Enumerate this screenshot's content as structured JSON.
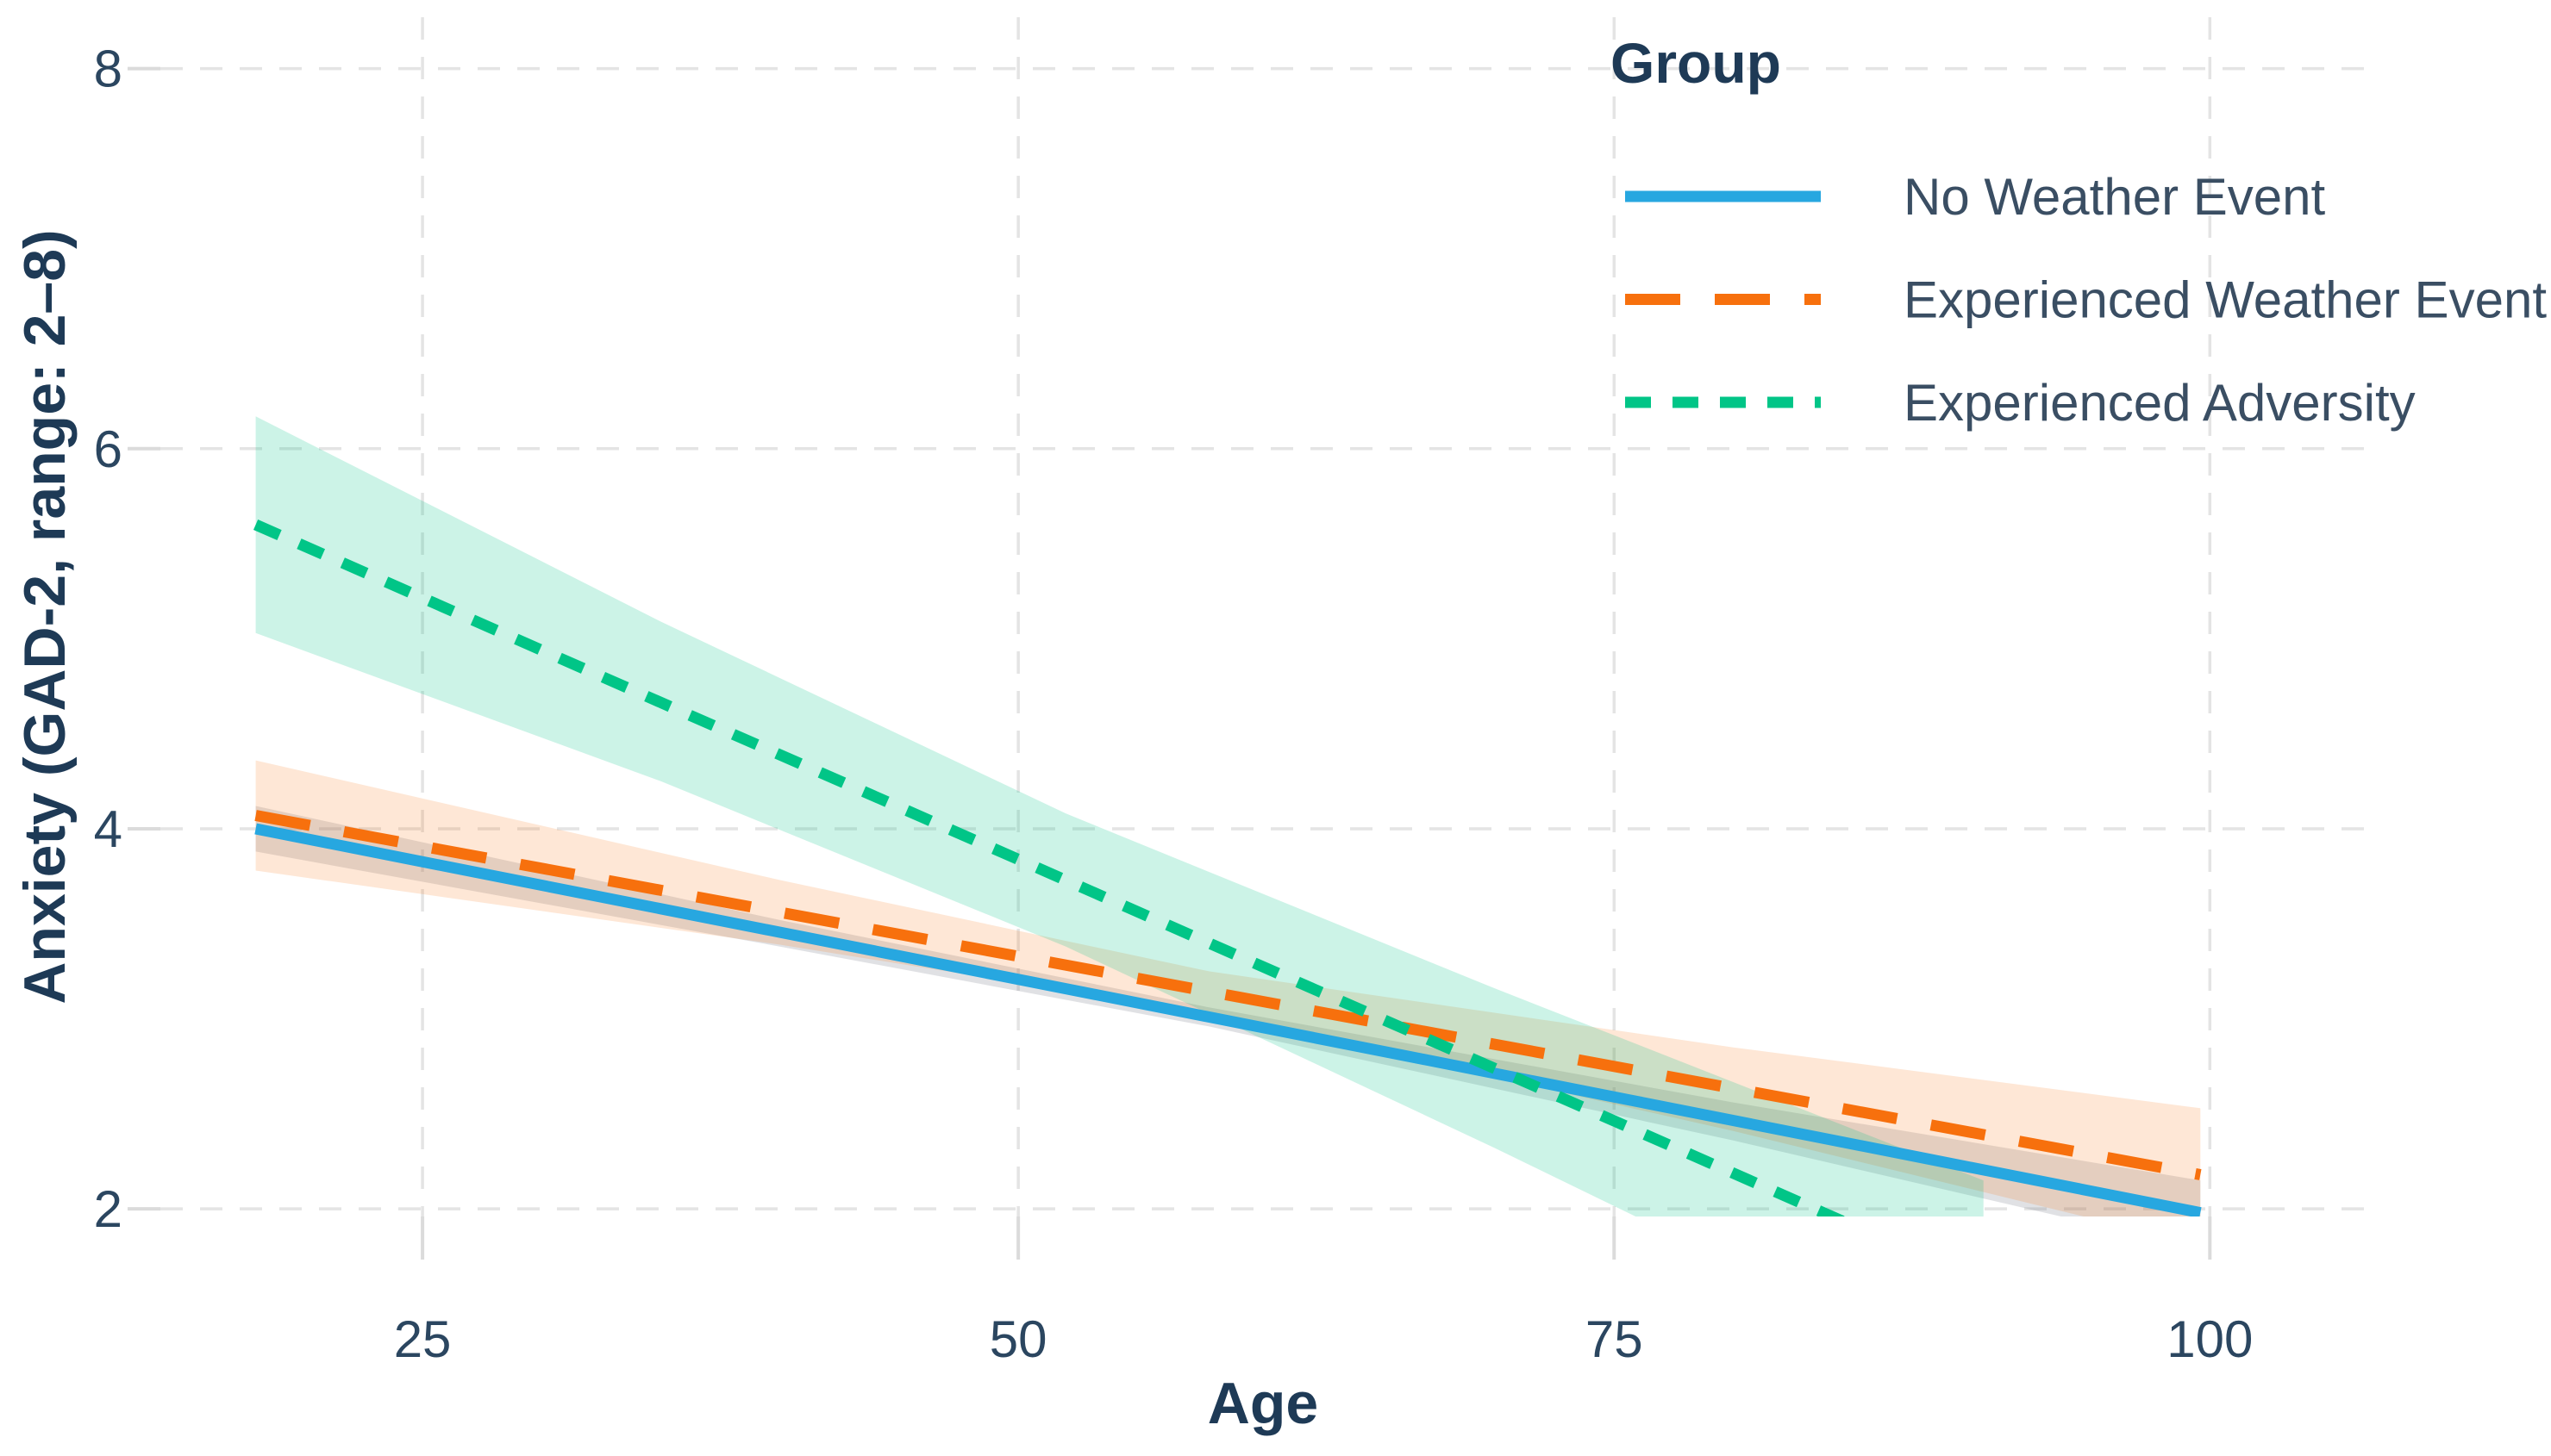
{
  "figure": {
    "background": "#ffffff",
    "grid_color": "#E4E4E4",
    "text_color": "#1E3A56"
  },
  "chart_data": {
    "type": "line",
    "title": "",
    "xlabel": "Age",
    "ylabel": "Anxiety (GAD-2, range: 2–8)",
    "legend_title": "Group",
    "legend_position": "top-right",
    "grid": true,
    "x_ticks": [
      25,
      50,
      75,
      100
    ],
    "y_ticks": [
      2,
      4,
      6,
      8
    ],
    "xlim": [
      14,
      106.5
    ],
    "ylim": [
      1.96,
      8.27
    ],
    "series": [
      {
        "name": "No Weather Event",
        "color": "#27A7E0",
        "ci_color": "rgba(115,118,130,0.22)",
        "dash": "solid",
        "x": [
          18,
          99.6
        ],
        "y": [
          4.0,
          1.98
        ],
        "ci": [
          {
            "x": 18,
            "lo": 3.88,
            "hi": 4.12
          },
          {
            "x": 40,
            "lo": 3.38,
            "hi": 3.52
          },
          {
            "x": 58,
            "lo": 2.96,
            "hi": 3.06
          },
          {
            "x": 80,
            "lo": 2.36,
            "hi": 2.56
          },
          {
            "x": 99.6,
            "lo": 1.79,
            "hi": 2.15
          }
        ]
      },
      {
        "name": "Experienced Weather Event",
        "color": "#F7700D",
        "ci_color": "rgba(247,112,13,0.17)",
        "dash": "dash",
        "x": [
          18,
          99.6
        ],
        "y": [
          4.07,
          2.18
        ],
        "ci": [
          {
            "x": 18,
            "lo": 3.78,
            "hi": 4.36
          },
          {
            "x": 40,
            "lo": 3.39,
            "hi": 3.73
          },
          {
            "x": 58,
            "lo": 3.03,
            "hi": 3.25
          },
          {
            "x": 80,
            "lo": 2.41,
            "hi": 2.85
          },
          {
            "x": 99.6,
            "lo": 1.81,
            "hi": 2.53
          }
        ]
      },
      {
        "name": "Experienced Adversity",
        "color": "#01C587",
        "ci_color": "rgba(1,197,135,0.20)",
        "dash": "dot",
        "x": [
          18,
          90.5
        ],
        "y": [
          5.6,
          1.61
        ],
        "ci": [
          {
            "x": 18,
            "lo": 5.03,
            "hi": 6.17
          },
          {
            "x": 35,
            "lo": 4.25,
            "hi": 5.09
          },
          {
            "x": 52,
            "lo": 3.38,
            "hi": 4.08
          },
          {
            "x": 70,
            "lo": 2.32,
            "hi": 3.16
          },
          {
            "x": 90.5,
            "lo": 1.07,
            "hi": 2.15
          }
        ]
      }
    ]
  }
}
